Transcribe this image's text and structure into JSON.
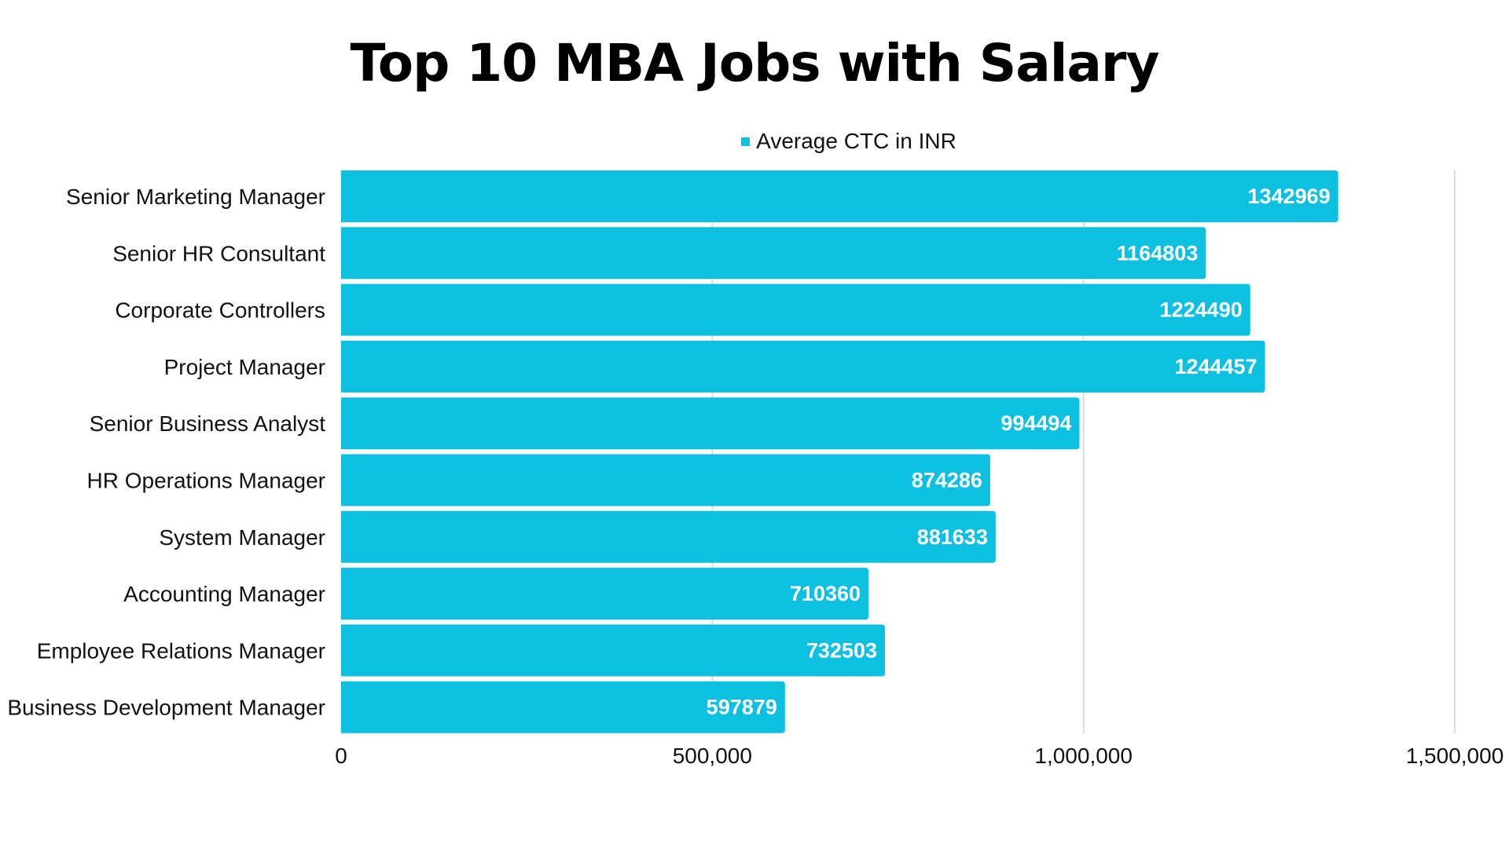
{
  "chart_data": {
    "type": "bar",
    "orientation": "horizontal",
    "title": "Top 10 MBA Jobs with Salary",
    "categories": [
      "Senior Marketing Manager",
      "Senior HR Consultant",
      "Corporate Controllers",
      "Project Manager",
      "Senior Business Analyst",
      "HR Operations Manager",
      "System Manager",
      "Accounting Manager",
      "Employee Relations Manager",
      "Business Development Manager"
    ],
    "series": [
      {
        "name": "Average CTC in INR",
        "values": [
          1342969,
          1164803,
          1224490,
          1244457,
          994494,
          874286,
          881633,
          710360,
          732503,
          597879
        ],
        "color": "#0EC0DF"
      }
    ],
    "xlim": [
      0,
      1500000
    ],
    "xticks": [
      0,
      500000,
      1000000,
      1500000
    ],
    "xtick_labels": [
      "0",
      "500,000",
      "1,000,000",
      "1,500,000"
    ],
    "grid": "vertical",
    "legend": "top",
    "data_labels": true
  }
}
